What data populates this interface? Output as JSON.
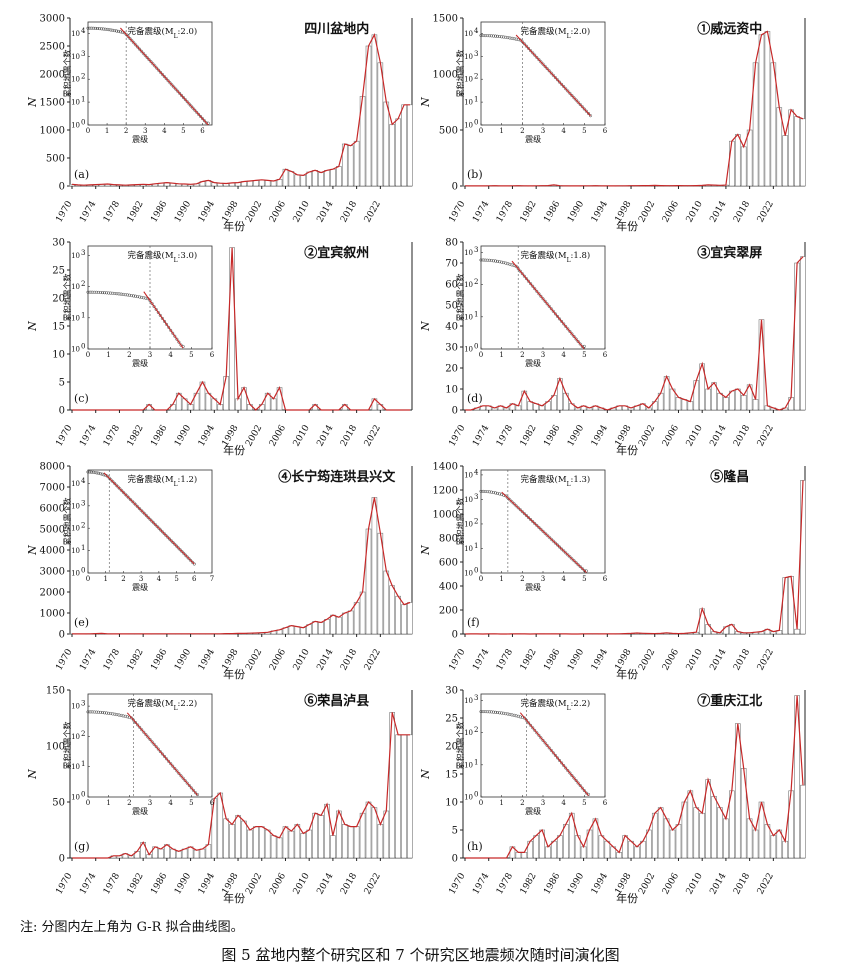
{
  "note": "注: 分图内左上角为 G-R 拟合曲线图。",
  "caption": "图 5   盆地内整个研究区和 7 个研究区地震频次随时间演化图",
  "colors": {
    "bar_fill": "#ffffff",
    "bar_stroke": "#777777",
    "fit_line": "#c62828",
    "text": "#111111"
  },
  "chart_data": [
    {
      "type": "bar",
      "panel_id": "a",
      "panel_label": "(a)",
      "title": "四川盆地内",
      "xlabel": "年份",
      "ylabel": "N",
      "ylim": [
        0,
        3000
      ],
      "yticks": [
        "0",
        "500",
        "1000",
        "1500",
        "2000",
        "2500",
        "3000"
      ],
      "xticks": [
        "1970",
        "1974",
        "1978",
        "1982",
        "1986",
        "1990",
        "1994",
        "1998",
        "2002",
        "2006",
        "2010",
        "2014",
        "2018",
        "2022"
      ],
      "x_start": 1970,
      "x_end": 2023,
      "values": [
        30,
        20,
        15,
        20,
        25,
        30,
        35,
        25,
        20,
        15,
        20,
        25,
        30,
        25,
        40,
        50,
        60,
        50,
        40,
        35,
        30,
        40,
        80,
        100,
        60,
        50,
        45,
        55,
        60,
        80,
        90,
        100,
        110,
        100,
        90,
        120,
        300,
        260,
        200,
        190,
        250,
        280,
        240,
        280,
        300,
        350,
        750,
        720,
        800,
        1600,
        2500,
        2700,
        2200,
        1500,
        1100,
        1200,
        1450,
        1450
      ],
      "inset": {
        "title": "完备震级(M",
        "mc_sub": "L",
        "mc_value": ":2.0)",
        "xlabel": "震级",
        "ylabel": "累积地震个数",
        "xticks": [
          "0",
          "1",
          "2",
          "3",
          "4",
          "5",
          "6"
        ],
        "yticks": [
          "10",
          "10",
          "10",
          "10",
          "10"
        ],
        "yexp": [
          "0",
          "1",
          "2",
          "3",
          "4"
        ],
        "xmax": 6.5,
        "ymax_exp": 4.5,
        "mc": 2.0,
        "a": 5.8,
        "b": 0.92,
        "mmax": 6.3
      }
    },
    {
      "type": "bar",
      "panel_id": "b",
      "panel_label": "(b)",
      "title": "①威远资中",
      "xlabel": "年份",
      "ylabel": "N",
      "ylim": [
        0,
        1500
      ],
      "yticks": [
        "0",
        "500",
        "1000",
        "1500"
      ],
      "xticks": [
        "1970",
        "1974",
        "1978",
        "1982",
        "1986",
        "1990",
        "1994",
        "1998",
        "2002",
        "2006",
        "2010",
        "2014",
        "2018",
        "2022"
      ],
      "x_start": 1970,
      "x_end": 2023,
      "values": [
        2,
        1,
        1,
        1,
        2,
        3,
        1,
        1,
        2,
        3,
        2,
        1,
        2,
        3,
        4,
        10,
        3,
        2,
        1,
        1,
        2,
        2,
        3,
        2,
        1,
        1,
        2,
        2,
        3,
        3,
        4,
        4,
        5,
        4,
        3,
        3,
        4,
        3,
        3,
        4,
        5,
        10,
        8,
        6,
        8,
        400,
        460,
        350,
        500,
        1100,
        1350,
        1380,
        1100,
        700,
        450,
        680,
        620,
        600
      ],
      "inset": {
        "title": "完备震级(M",
        "mc_sub": "L",
        "mc_value": ":2.0)",
        "xlabel": "震级",
        "ylabel": "累积地震个数",
        "xticks": [
          "0",
          "1",
          "2",
          "3",
          "4",
          "5",
          "6"
        ],
        "yticks": [
          "10",
          "10",
          "10",
          "10",
          "10"
        ],
        "yexp": [
          "0",
          "1",
          "2",
          "3",
          "4"
        ],
        "xmax": 6,
        "ymax_exp": 4.5,
        "mc": 2.0,
        "a": 5.6,
        "b": 0.98,
        "mmax": 5.3
      }
    },
    {
      "type": "bar",
      "panel_id": "c",
      "panel_label": "(c)",
      "title": "②宜宾叙州",
      "xlabel": "年份",
      "ylabel": "N",
      "ylim": [
        0,
        30
      ],
      "yticks": [
        "0",
        "5",
        "10",
        "15",
        "20",
        "25",
        "30"
      ],
      "xticks": [
        "1970",
        "1974",
        "1978",
        "1982",
        "1986",
        "1990",
        "1994",
        "1998",
        "2002",
        "2006",
        "2010",
        "2014",
        "2018",
        "2022"
      ],
      "x_start": 1970,
      "x_end": 2023,
      "values": [
        0,
        0,
        0,
        0,
        0,
        0,
        0,
        0,
        0,
        0,
        0,
        0,
        0,
        1,
        0,
        0,
        0,
        1,
        3,
        2,
        1,
        3,
        5,
        3,
        2,
        1,
        6,
        29,
        2,
        4,
        1,
        0,
        1,
        3,
        2,
        4,
        0,
        0,
        0,
        0,
        0,
        1,
        0,
        0,
        0,
        0,
        1,
        0,
        0,
        0,
        0,
        2,
        1,
        0,
        0,
        0,
        0,
        0
      ],
      "inset": {
        "title": "完备震级(M",
        "mc_sub": "L",
        "mc_value": ":3.0)",
        "xlabel": "震级",
        "ylabel": "累积地震个数",
        "xticks": [
          "0",
          "1",
          "2",
          "3",
          "4",
          "5",
          "6"
        ],
        "yticks": [
          "10",
          "10",
          "10",
          "10"
        ],
        "yexp": [
          "0",
          "1",
          "2",
          "3"
        ],
        "xmax": 6,
        "ymax_exp": 3.3,
        "mc": 3.0,
        "a": 4.4,
        "b": 0.95,
        "mmax": 4.6
      }
    },
    {
      "type": "bar",
      "panel_id": "d",
      "panel_label": "(d)",
      "title": "③宜宾翠屏",
      "xlabel": "年份",
      "ylabel": "N",
      "ylim": [
        0,
        80
      ],
      "yticks": [
        "0",
        "10",
        "20",
        "30",
        "40",
        "50",
        "60",
        "70",
        "80"
      ],
      "xticks": [
        "1970",
        "1974",
        "1978",
        "1982",
        "1986",
        "1990",
        "1994",
        "1998",
        "2002",
        "2006",
        "2010",
        "2014",
        "2018",
        "2022"
      ],
      "x_start": 1970,
      "x_end": 2023,
      "values": [
        0,
        0,
        1,
        2,
        2,
        1,
        2,
        1,
        3,
        2,
        9,
        4,
        3,
        2,
        4,
        7,
        15,
        8,
        3,
        1,
        2,
        1,
        2,
        1,
        0,
        1,
        2,
        2,
        1,
        2,
        3,
        1,
        4,
        8,
        16,
        10,
        6,
        5,
        4,
        14,
        22,
        10,
        13,
        8,
        6,
        9,
        10,
        7,
        12,
        5,
        43,
        2,
        1,
        0,
        1,
        6,
        70,
        73
      ],
      "inset": {
        "title": "完备震级(M",
        "mc_sub": "L",
        "mc_value": ":1.8)",
        "xlabel": "震级",
        "ylabel": "累积地震个数",
        "xticks": [
          "0",
          "1",
          "2",
          "3",
          "4",
          "5",
          "6"
        ],
        "yticks": [
          "10",
          "10",
          "10",
          "10"
        ],
        "yexp": [
          "0",
          "1",
          "2",
          "3"
        ],
        "xmax": 6,
        "ymax_exp": 3.2,
        "mc": 1.8,
        "a": 3.9,
        "b": 0.78,
        "mmax": 5.0
      }
    },
    {
      "type": "bar",
      "panel_id": "e",
      "panel_label": "(e)",
      "title": "④长宁筠连珙县兴文",
      "xlabel": "年份",
      "ylabel": "N",
      "ylim": [
        0,
        8000
      ],
      "yticks": [
        "0",
        "1000",
        "2000",
        "3000",
        "4000",
        "5000",
        "6000",
        "7000",
        "8000"
      ],
      "xticks": [
        "1970",
        "1974",
        "1978",
        "1982",
        "1986",
        "1990",
        "1994",
        "1998",
        "2002",
        "2006",
        "2010",
        "2014",
        "2018",
        "2022"
      ],
      "x_start": 1970,
      "x_end": 2023,
      "values": [
        10,
        5,
        5,
        10,
        20,
        30,
        10,
        5,
        5,
        5,
        10,
        10,
        5,
        5,
        10,
        10,
        10,
        10,
        10,
        10,
        10,
        10,
        10,
        10,
        10,
        10,
        20,
        20,
        30,
        30,
        40,
        50,
        60,
        80,
        150,
        200,
        300,
        400,
        350,
        300,
        450,
        600,
        550,
        700,
        900,
        800,
        1000,
        1100,
        1500,
        2000,
        5000,
        6500,
        4800,
        3000,
        2300,
        1800,
        1400,
        1500
      ],
      "inset": {
        "title": "完备震级(M",
        "mc_sub": "L",
        "mc_value": ":1.2)",
        "xlabel": "震级",
        "ylabel": "累积地震个数",
        "xticks": [
          "0",
          "1",
          "2",
          "3",
          "4",
          "5",
          "6",
          "7"
        ],
        "yticks": [
          "10",
          "10",
          "10",
          "10",
          "10"
        ],
        "yexp": [
          "0",
          "1",
          "2",
          "3",
          "4"
        ],
        "xmax": 7,
        "ymax_exp": 4.6,
        "mc": 1.2,
        "a": 5.2,
        "b": 0.8,
        "mmax": 6.0
      }
    },
    {
      "type": "bar",
      "panel_id": "f",
      "panel_label": "(f)",
      "title": "⑤隆昌",
      "xlabel": "年份",
      "ylabel": "N",
      "ylim": [
        0,
        1400
      ],
      "yticks": [
        "0",
        "200",
        "400",
        "600",
        "800",
        "1000",
        "1200",
        "1400"
      ],
      "xticks": [
        "1970",
        "1974",
        "1978",
        "1982",
        "1986",
        "1990",
        "1994",
        "1998",
        "2002",
        "2006",
        "2010",
        "2014",
        "2018",
        "2022"
      ],
      "x_start": 1970,
      "x_end": 2023,
      "values": [
        0,
        1,
        1,
        0,
        1,
        2,
        0,
        0,
        1,
        2,
        1,
        0,
        1,
        2,
        1,
        2,
        1,
        1,
        0,
        0,
        1,
        2,
        2,
        1,
        1,
        1,
        2,
        3,
        5,
        8,
        6,
        4,
        3,
        5,
        10,
        5,
        3,
        5,
        10,
        15,
        210,
        80,
        20,
        10,
        60,
        80,
        20,
        10,
        10,
        15,
        20,
        40,
        20,
        30,
        470,
        480,
        40,
        1280
      ],
      "inset": {
        "title": "完备震级(M",
        "mc_sub": "L",
        "mc_value": ":1.3)",
        "xlabel": "震级",
        "ylabel": "累积地震个数",
        "xticks": [
          "0",
          "1",
          "2",
          "3",
          "4",
          "5",
          "6"
        ],
        "yticks": [
          "10",
          "10",
          "10",
          "10",
          "10"
        ],
        "yexp": [
          "0",
          "1",
          "2",
          "3",
          "4"
        ],
        "xmax": 6,
        "ymax_exp": 4.2,
        "mc": 1.3,
        "a": 4.1,
        "b": 0.8,
        "mmax": 5.1
      }
    },
    {
      "type": "bar",
      "panel_id": "g",
      "panel_label": "(g)",
      "title": "⑥荣昌泸县",
      "xlabel": "年份",
      "ylabel": "N",
      "ylim": [
        0,
        150
      ],
      "yticks": [
        "0",
        "50",
        "100",
        "150"
      ],
      "xticks": [
        "1970",
        "1974",
        "1978",
        "1982",
        "1986",
        "1990",
        "1994",
        "1998",
        "2002",
        "2006",
        "2010",
        "2014",
        "2018",
        "2022"
      ],
      "x_start": 1970,
      "x_end": 2023,
      "values": [
        0,
        0,
        0,
        0,
        0,
        0,
        0,
        2,
        2,
        4,
        2,
        6,
        14,
        3,
        10,
        8,
        12,
        8,
        6,
        8,
        10,
        7,
        8,
        12,
        53,
        58,
        35,
        30,
        38,
        33,
        25,
        28,
        28,
        25,
        20,
        18,
        28,
        24,
        30,
        22,
        25,
        40,
        38,
        48,
        20,
        42,
        30,
        28,
        28,
        40,
        50,
        45,
        30,
        42,
        130,
        110,
        110,
        110
      ],
      "inset": {
        "title": "完备震级(M",
        "mc_sub": "L",
        "mc_value": ":2.2)",
        "xlabel": "震级",
        "ylabel": "累积地震个数",
        "xticks": [
          "0",
          "1",
          "2",
          "3",
          "4",
          "5",
          "6"
        ],
        "yticks": [
          "10",
          "10",
          "10",
          "10"
        ],
        "yexp": [
          "0",
          "1",
          "2",
          "3"
        ],
        "xmax": 6,
        "ymax_exp": 3.4,
        "mc": 2.2,
        "a": 4.3,
        "b": 0.8,
        "mmax": 5.3
      }
    },
    {
      "type": "bar",
      "panel_id": "h",
      "panel_label": "(h)",
      "title": "⑦重庆江北",
      "xlabel": "年份",
      "ylabel": "N",
      "ylim": [
        0,
        30
      ],
      "yticks": [
        "0",
        "5",
        "10",
        "15",
        "20",
        "25",
        "30"
      ],
      "xticks": [
        "1970",
        "1974",
        "1978",
        "1982",
        "1986",
        "1990",
        "1994",
        "1998",
        "2002",
        "2006",
        "2010",
        "2014",
        "2018",
        "2022"
      ],
      "x_start": 1970,
      "x_end": 2023,
      "values": [
        0,
        0,
        0,
        0,
        0,
        0,
        0,
        0,
        2,
        1,
        1,
        3,
        4,
        5,
        2,
        3,
        4,
        6,
        8,
        4,
        2,
        5,
        7,
        4,
        3,
        2,
        1,
        4,
        3,
        2,
        3,
        5,
        8,
        9,
        7,
        5,
        6,
        10,
        12,
        9,
        8,
        14,
        11,
        9,
        7,
        12,
        24,
        16,
        7,
        5,
        10,
        6,
        4,
        5,
        3,
        12,
        29,
        13
      ],
      "inset": {
        "title": "完备震级(M",
        "mc_sub": "L",
        "mc_value": ":2.2)",
        "xlabel": "震级",
        "ylabel": "累积地震个数",
        "xticks": [
          "0",
          "1",
          "2",
          "3",
          "4",
          "5",
          "6"
        ],
        "yticks": [
          "10",
          "10",
          "10",
          "10"
        ],
        "yexp": [
          "0",
          "1",
          "2",
          "3"
        ],
        "xmax": 6,
        "ymax_exp": 3.2,
        "mc": 2.2,
        "a": 4.1,
        "b": 0.78,
        "mmax": 5.2
      }
    }
  ]
}
